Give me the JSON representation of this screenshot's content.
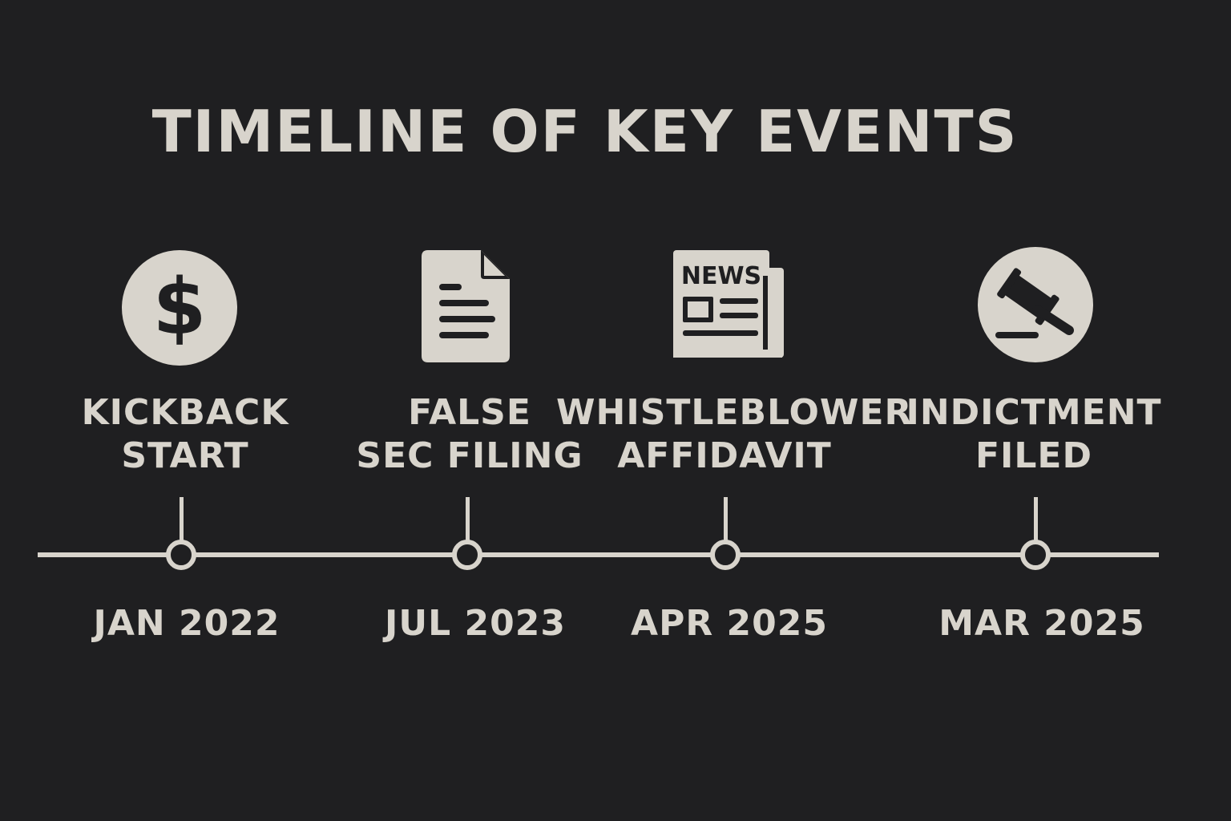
{
  "title": "TIMELINE OF KEY EVENTS",
  "colors": {
    "background": "#1f1f21",
    "foreground": "#d8d4cc"
  },
  "events": [
    {
      "icon": "dollar-coin-icon",
      "label_line1": "KICKBACK",
      "label_line2": "START",
      "date": "JAN 2022"
    },
    {
      "icon": "document-icon",
      "label_line1": "FALSE",
      "label_line2": "SEC FILING",
      "date": "JUL 2023"
    },
    {
      "icon": "newspaper-icon",
      "icon_text": "NEWS",
      "label_line1": "WHISTLEBLOWER",
      "label_line2": "AFFIDAVIT",
      "date": "APR 2025"
    },
    {
      "icon": "gavel-icon",
      "label_line1": "INDICTMENT",
      "label_line2": "FILED",
      "date": "MAR 2025"
    }
  ]
}
